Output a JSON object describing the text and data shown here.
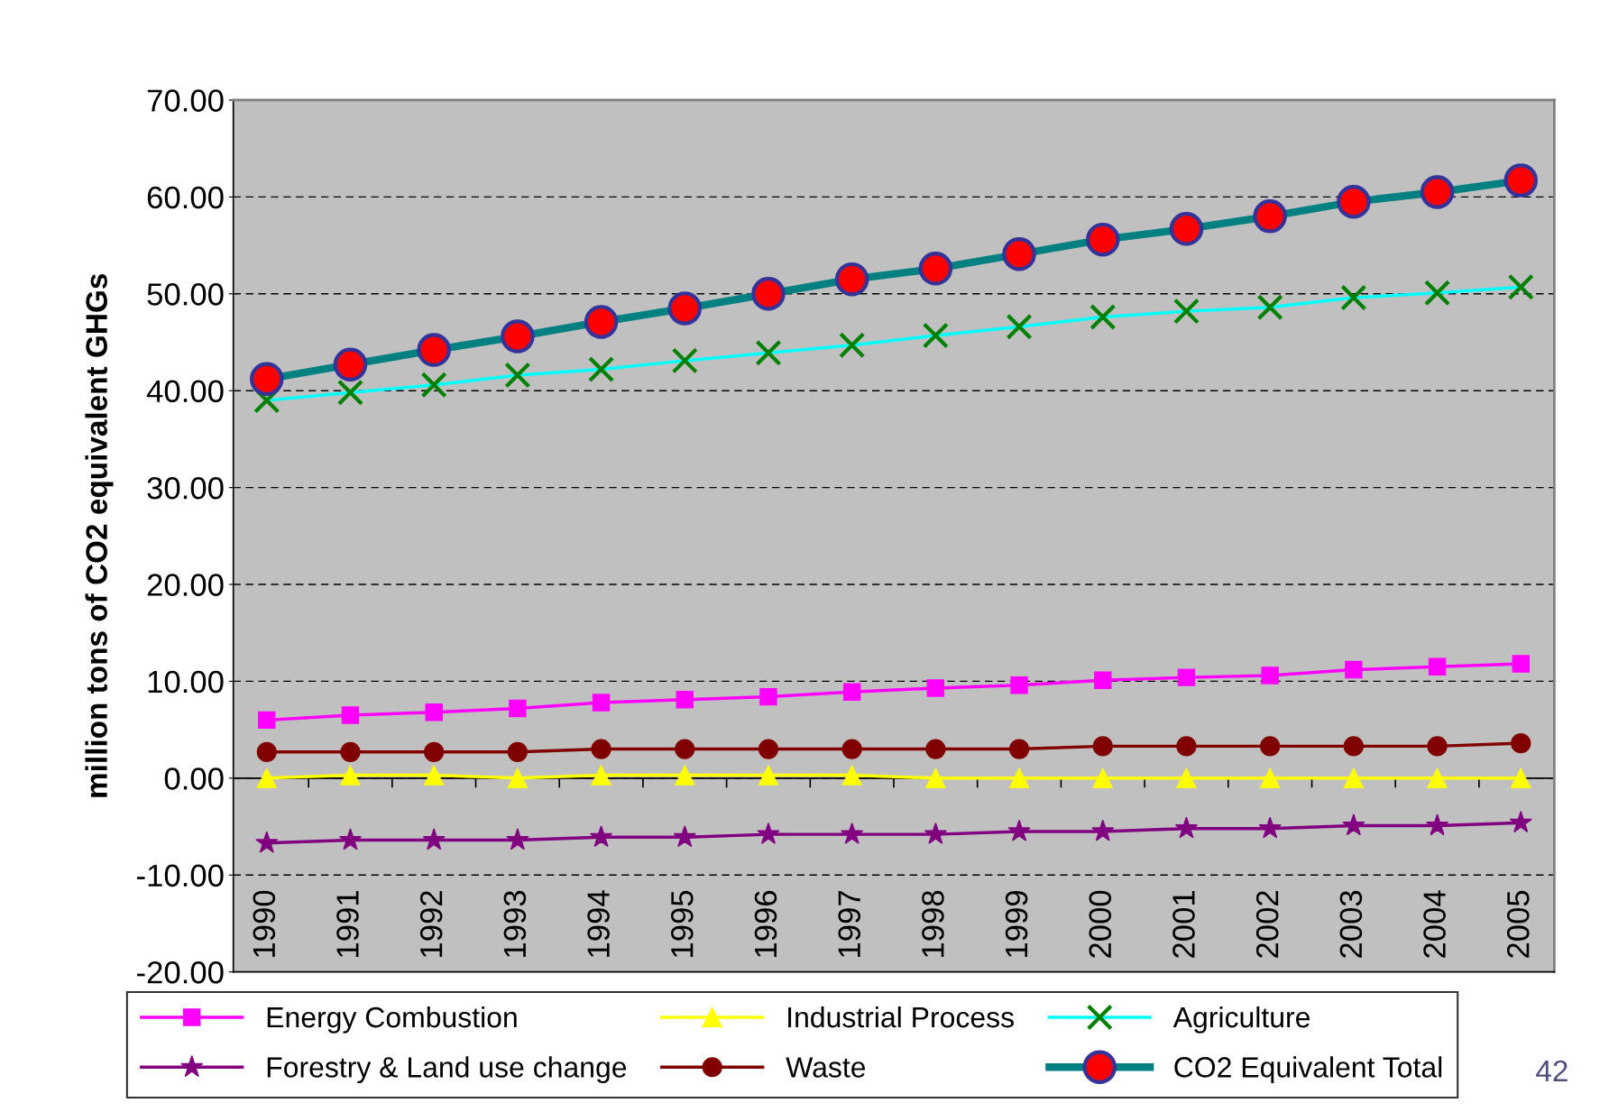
{
  "chart_data": {
    "type": "line",
    "ylabel": "million tons of CO2 equivalent GHGs",
    "categories": [
      "1990",
      "1991",
      "1992",
      "1993",
      "1994",
      "1995",
      "1996",
      "1997",
      "1998",
      "1999",
      "2000",
      "2001",
      "2002",
      "2003",
      "2004",
      "2005"
    ],
    "ylim": [
      -20,
      70
    ],
    "yticks": [
      {
        "value": -20,
        "label": "-20.00"
      },
      {
        "value": -10,
        "label": "-10.00"
      },
      {
        "value": 0,
        "label": "0.00"
      },
      {
        "value": 10,
        "label": "10.00"
      },
      {
        "value": 20,
        "label": "20.00"
      },
      {
        "value": 30,
        "label": "30.00"
      },
      {
        "value": 40,
        "label": "40.00"
      },
      {
        "value": 50,
        "label": "50.00"
      },
      {
        "value": 60,
        "label": "60.00"
      },
      {
        "value": 70,
        "label": "70.00"
      }
    ],
    "grid": "y",
    "legend": "bottom",
    "series": [
      {
        "name": "Energy Combustion",
        "color": "#ff00ff",
        "marker": "square",
        "values": [
          6.0,
          6.5,
          6.8,
          7.2,
          7.8,
          8.1,
          8.4,
          8.9,
          9.3,
          9.6,
          10.1,
          10.4,
          10.6,
          11.2,
          11.5,
          11.8
        ]
      },
      {
        "name": "Industrial Process",
        "color": "#ffff00",
        "marker": "triangle",
        "values": [
          0.0,
          0.3,
          0.3,
          0.0,
          0.3,
          0.3,
          0.3,
          0.3,
          0.0,
          0.0,
          0.0,
          0.0,
          0.0,
          0.0,
          0.0,
          0.0
        ]
      },
      {
        "name": "Agriculture",
        "color": "#00ffff",
        "marker": "cross",
        "values": [
          39.0,
          39.8,
          40.6,
          41.6,
          42.2,
          43.1,
          43.9,
          44.7,
          45.7,
          46.6,
          47.6,
          48.2,
          48.6,
          49.6,
          50.1,
          50.7
        ]
      },
      {
        "name": "Forestry & Land use change",
        "color": "#800080",
        "marker": "star",
        "values": [
          -6.7,
          -6.4,
          -6.4,
          -6.4,
          -6.1,
          -6.1,
          -5.8,
          -5.8,
          -5.8,
          -5.5,
          -5.5,
          -5.2,
          -5.2,
          -4.9,
          -4.9,
          -4.6
        ]
      },
      {
        "name": "Waste",
        "color": "#800000",
        "marker": "circle",
        "values": [
          2.7,
          2.7,
          2.7,
          2.7,
          3.0,
          3.0,
          3.0,
          3.0,
          3.0,
          3.0,
          3.3,
          3.3,
          3.3,
          3.3,
          3.3,
          3.6
        ]
      },
      {
        "name": "CO2 Equivalent Total",
        "color": "#008080",
        "marker": "circle",
        "values": [
          41.2,
          42.7,
          44.2,
          45.6,
          47.1,
          48.5,
          50.0,
          51.5,
          52.6,
          54.1,
          55.6,
          56.7,
          58.0,
          59.5,
          60.5,
          61.7
        ]
      }
    ],
    "annotations": [
      "42"
    ]
  }
}
